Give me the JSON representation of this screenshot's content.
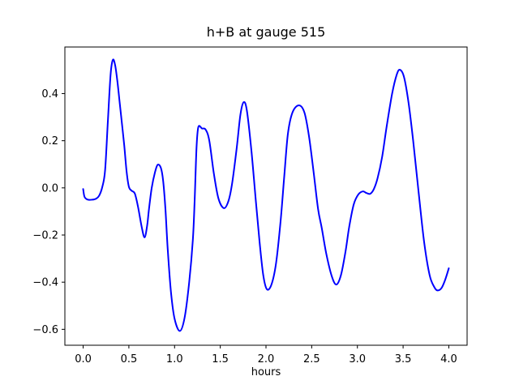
{
  "figure": {
    "background_color": "#ffffff",
    "axes_color": "#000000",
    "tick_label_color": "#000000"
  },
  "chart_data": {
    "type": "line",
    "title": "h+B at gauge 515",
    "xlabel": "hours",
    "ylabel": "",
    "grid": false,
    "legend": "none",
    "xlim": [
      -0.2,
      4.2
    ],
    "ylim": [
      -0.6675,
      0.5975
    ],
    "x_ticks": [
      {
        "value": 0.0,
        "label": "0.0"
      },
      {
        "value": 0.5,
        "label": "0.5"
      },
      {
        "value": 1.0,
        "label": "1.0"
      },
      {
        "value": 1.5,
        "label": "1.5"
      },
      {
        "value": 2.0,
        "label": "2.0"
      },
      {
        "value": 2.5,
        "label": "2.5"
      },
      {
        "value": 3.0,
        "label": "3.0"
      },
      {
        "value": 3.5,
        "label": "3.5"
      },
      {
        "value": 4.0,
        "label": "4.0"
      }
    ],
    "y_ticks": [
      {
        "value": -0.6,
        "label": "−0.6"
      },
      {
        "value": -0.4,
        "label": "−0.4"
      },
      {
        "value": -0.2,
        "label": "−0.2"
      },
      {
        "value": 0.0,
        "label": "0.0"
      },
      {
        "value": 0.2,
        "label": "0.2"
      },
      {
        "value": 0.4,
        "label": "0.4"
      }
    ],
    "series": [
      {
        "name": "h+B",
        "color": "#0000ff",
        "line_width": 2,
        "points": [
          [
            0.0,
            -0.005
          ],
          [
            0.015,
            -0.038
          ],
          [
            0.05,
            -0.05
          ],
          [
            0.1,
            -0.05
          ],
          [
            0.14,
            -0.046
          ],
          [
            0.175,
            -0.033
          ],
          [
            0.21,
            0.005
          ],
          [
            0.24,
            0.075
          ],
          [
            0.27,
            0.28
          ],
          [
            0.3,
            0.48
          ],
          [
            0.325,
            0.543
          ],
          [
            0.35,
            0.52
          ],
          [
            0.375,
            0.45
          ],
          [
            0.4,
            0.36
          ],
          [
            0.425,
            0.27
          ],
          [
            0.45,
            0.178
          ],
          [
            0.475,
            0.07
          ],
          [
            0.5,
            0.005
          ],
          [
            0.53,
            -0.012
          ],
          [
            0.565,
            -0.024
          ],
          [
            0.6,
            -0.08
          ],
          [
            0.64,
            -0.165
          ],
          [
            0.672,
            -0.21
          ],
          [
            0.7,
            -0.16
          ],
          [
            0.72,
            -0.09
          ],
          [
            0.75,
            0.0
          ],
          [
            0.785,
            0.065
          ],
          [
            0.815,
            0.098
          ],
          [
            0.85,
            0.085
          ],
          [
            0.875,
            0.03
          ],
          [
            0.9,
            -0.09
          ],
          [
            0.925,
            -0.26
          ],
          [
            0.96,
            -0.44
          ],
          [
            1.0,
            -0.555
          ],
          [
            1.058,
            -0.607
          ],
          [
            1.11,
            -0.55
          ],
          [
            1.16,
            -0.4
          ],
          [
            1.2,
            -0.22
          ],
          [
            1.22,
            -0.05
          ],
          [
            1.24,
            0.17
          ],
          [
            1.26,
            0.258
          ],
          [
            1.3,
            0.252
          ],
          [
            1.34,
            0.247
          ],
          [
            1.38,
            0.2
          ],
          [
            1.43,
            0.06
          ],
          [
            1.48,
            -0.045
          ],
          [
            1.54,
            -0.086
          ],
          [
            1.59,
            -0.055
          ],
          [
            1.63,
            0.02
          ],
          [
            1.68,
            0.17
          ],
          [
            1.72,
            0.31
          ],
          [
            1.755,
            0.363
          ],
          [
            1.79,
            0.33
          ],
          [
            1.84,
            0.16
          ],
          [
            1.89,
            -0.06
          ],
          [
            1.93,
            -0.23
          ],
          [
            1.97,
            -0.37
          ],
          [
            2.01,
            -0.43
          ],
          [
            2.06,
            -0.41
          ],
          [
            2.11,
            -0.32
          ],
          [
            2.16,
            -0.14
          ],
          [
            2.2,
            0.05
          ],
          [
            2.24,
            0.23
          ],
          [
            2.29,
            0.32
          ],
          [
            2.36,
            0.35
          ],
          [
            2.42,
            0.32
          ],
          [
            2.47,
            0.22
          ],
          [
            2.52,
            0.07
          ],
          [
            2.57,
            -0.09
          ],
          [
            2.61,
            -0.17
          ],
          [
            2.66,
            -0.28
          ],
          [
            2.72,
            -0.375
          ],
          [
            2.77,
            -0.41
          ],
          [
            2.82,
            -0.37
          ],
          [
            2.87,
            -0.27
          ],
          [
            2.91,
            -0.166
          ],
          [
            2.96,
            -0.07
          ],
          [
            3.01,
            -0.028
          ],
          [
            3.06,
            -0.015
          ],
          [
            3.1,
            -0.022
          ],
          [
            3.14,
            -0.025
          ],
          [
            3.18,
            -0.005
          ],
          [
            3.22,
            0.04
          ],
          [
            3.27,
            0.13
          ],
          [
            3.32,
            0.26
          ],
          [
            3.38,
            0.4
          ],
          [
            3.43,
            0.48
          ],
          [
            3.465,
            0.501
          ],
          [
            3.51,
            0.47
          ],
          [
            3.56,
            0.36
          ],
          [
            3.61,
            0.2
          ],
          [
            3.67,
            -0.02
          ],
          [
            3.73,
            -0.23
          ],
          [
            3.79,
            -0.37
          ],
          [
            3.84,
            -0.42
          ],
          [
            3.875,
            -0.435
          ],
          [
            3.92,
            -0.425
          ],
          [
            3.96,
            -0.39
          ],
          [
            4.0,
            -0.341
          ]
        ]
      }
    ]
  }
}
